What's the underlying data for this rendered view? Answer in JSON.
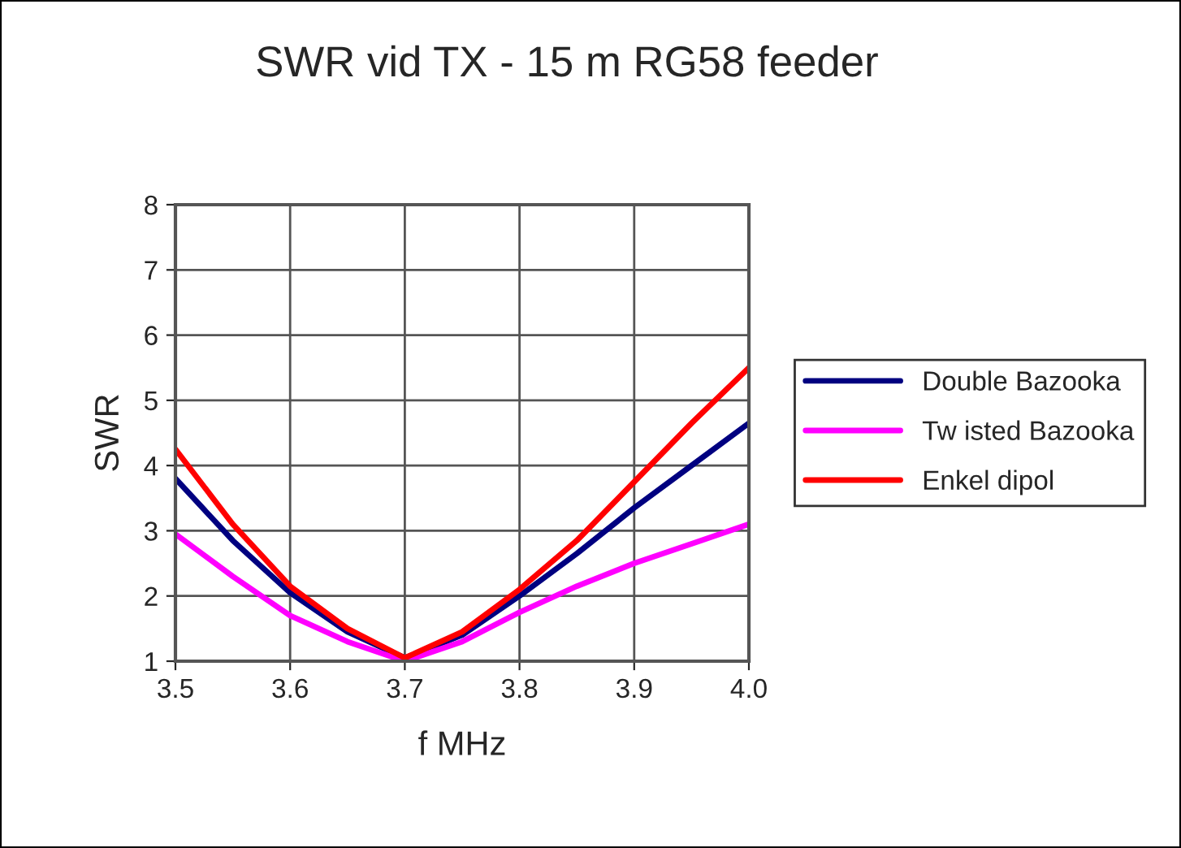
{
  "chart_data": {
    "type": "line",
    "title": "SWR vid TX - 15 m RG58 feeder",
    "xlabel": "f MHz",
    "ylabel": "SWR",
    "x": [
      3.5,
      3.55,
      3.6,
      3.65,
      3.7,
      3.75,
      3.8,
      3.85,
      3.9,
      3.95,
      4.0
    ],
    "series": [
      {
        "name": "Double Bazooka",
        "color": "#000080",
        "values": [
          3.8,
          2.85,
          2.05,
          1.45,
          1.05,
          1.4,
          2.0,
          2.65,
          3.35,
          4.0,
          4.65
        ]
      },
      {
        "name": "Tw isted Bazooka",
        "color": "#ff00ff",
        "values": [
          2.95,
          2.3,
          1.7,
          1.3,
          1.0,
          1.3,
          1.75,
          2.15,
          2.5,
          2.8,
          3.1
        ]
      },
      {
        "name": "Enkel dipol",
        "color": "#ff0000",
        "values": [
          4.25,
          3.1,
          2.15,
          1.5,
          1.05,
          1.45,
          2.1,
          2.85,
          3.75,
          4.65,
          5.5
        ]
      }
    ],
    "xlim": [
      3.5,
      4.0
    ],
    "xticks": [
      {
        "value": 3.5,
        "label": "3.5"
      },
      {
        "value": 3.6,
        "label": "3.6"
      },
      {
        "value": 3.7,
        "label": "3.7"
      },
      {
        "value": 3.8,
        "label": "3.8"
      },
      {
        "value": 3.9,
        "label": "3.9"
      },
      {
        "value": 4.0,
        "label": "4.0"
      }
    ],
    "ylim": [
      1,
      8
    ],
    "yticks": [
      1,
      2,
      3,
      4,
      5,
      6,
      7,
      8
    ],
    "grid": true,
    "legend": "right",
    "marker": "none",
    "line_style": "solid"
  }
}
